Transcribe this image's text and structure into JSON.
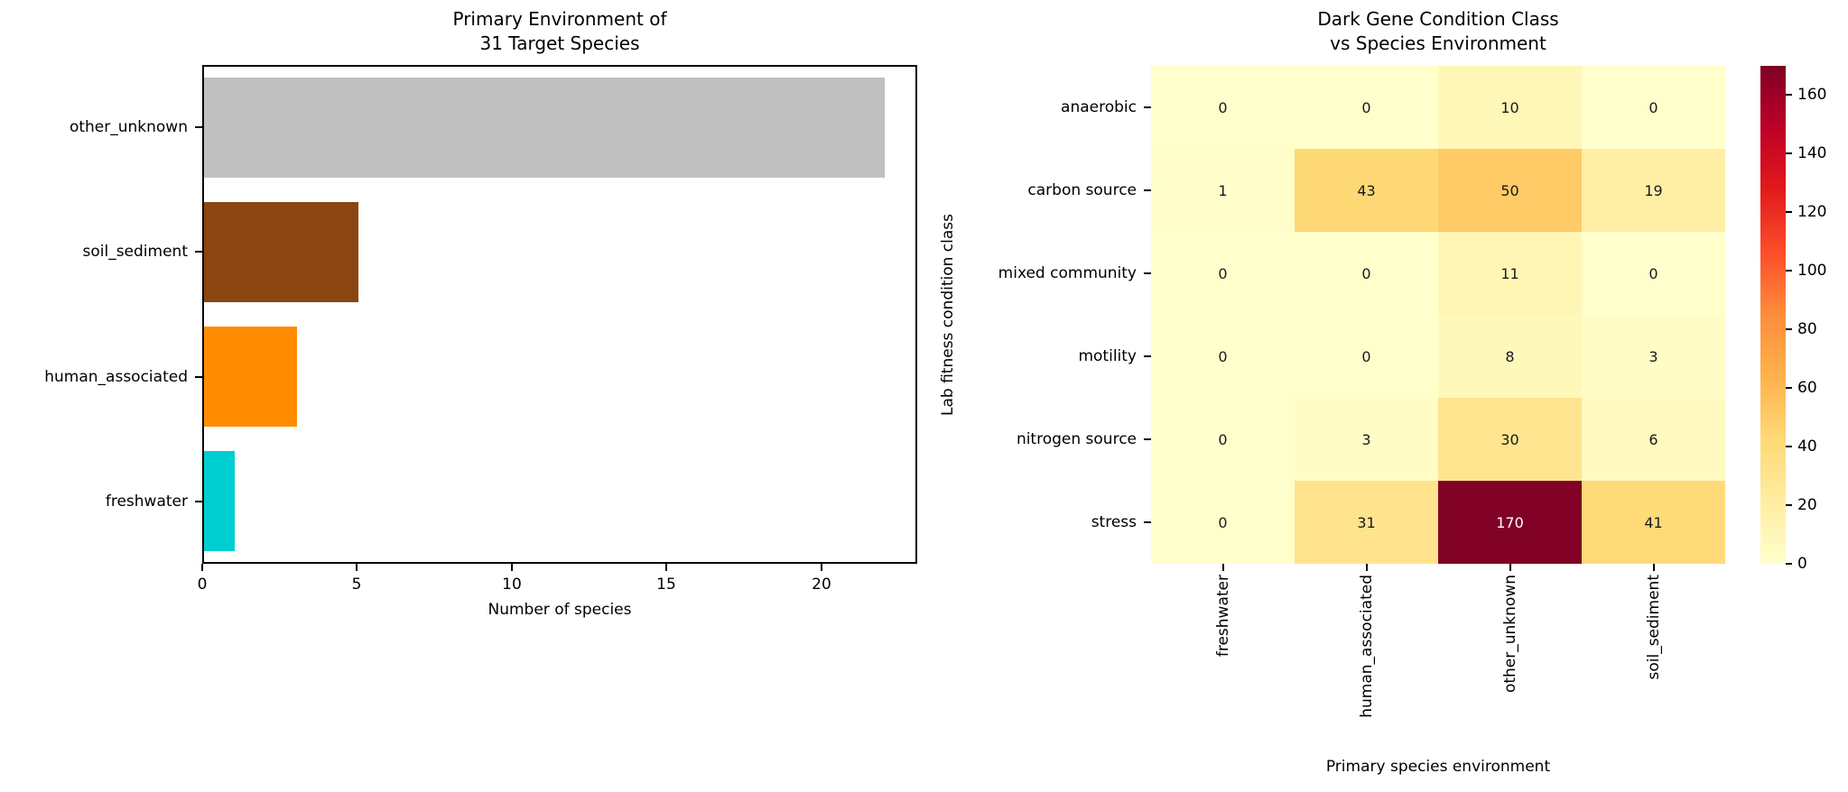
{
  "figure": {
    "background": "#ffffff",
    "text_color": "#000000",
    "annotation_dark_color": "#1a1a1a",
    "annotation_light_color": "#ffffff"
  },
  "chart_data": [
    {
      "type": "bar",
      "orientation": "horizontal",
      "title": "Primary Environment of\n31 Target Species",
      "categories": [
        "other_unknown",
        "soil_sediment",
        "human_associated",
        "freshwater"
      ],
      "values": [
        22,
        5,
        3,
        1
      ],
      "bar_colors": [
        "#c0c0c0",
        "#8b4513",
        "#ff8c00",
        "#00ced1"
      ],
      "xlabel": "Number of species",
      "xticks": [
        0,
        5,
        10,
        15,
        20
      ],
      "xlim": [
        0,
        23.1
      ],
      "grid": false,
      "legend": "none"
    },
    {
      "type": "heatmap",
      "title": "Dark Gene Condition Class\nvs Species Environment",
      "rows": [
        "anaerobic",
        "carbon source",
        "mixed community",
        "motility",
        "nitrogen source",
        "stress"
      ],
      "columns": [
        "freshwater",
        "human_associated",
        "other_unknown",
        "soil_sediment"
      ],
      "values": [
        [
          0,
          0,
          10,
          0
        ],
        [
          1,
          43,
          50,
          19
        ],
        [
          0,
          0,
          11,
          0
        ],
        [
          0,
          0,
          8,
          3
        ],
        [
          0,
          3,
          30,
          6
        ],
        [
          0,
          31,
          170,
          41
        ]
      ],
      "xlabel": "Primary species environment",
      "ylabel": "Lab fitness condition class",
      "vmin": 0,
      "vmax": 170,
      "colormap": "YlOrRd",
      "colormap_stops": [
        "#ffffcc",
        "#ffeda0",
        "#fed976",
        "#feb24c",
        "#fd8d3c",
        "#fc4e2a",
        "#e31a1c",
        "#bd0026",
        "#800026"
      ],
      "colorbar_ticks": [
        0,
        20,
        40,
        60,
        80,
        100,
        120,
        140,
        160
      ],
      "legend_position": "right-colorbar",
      "grid": false
    }
  ]
}
